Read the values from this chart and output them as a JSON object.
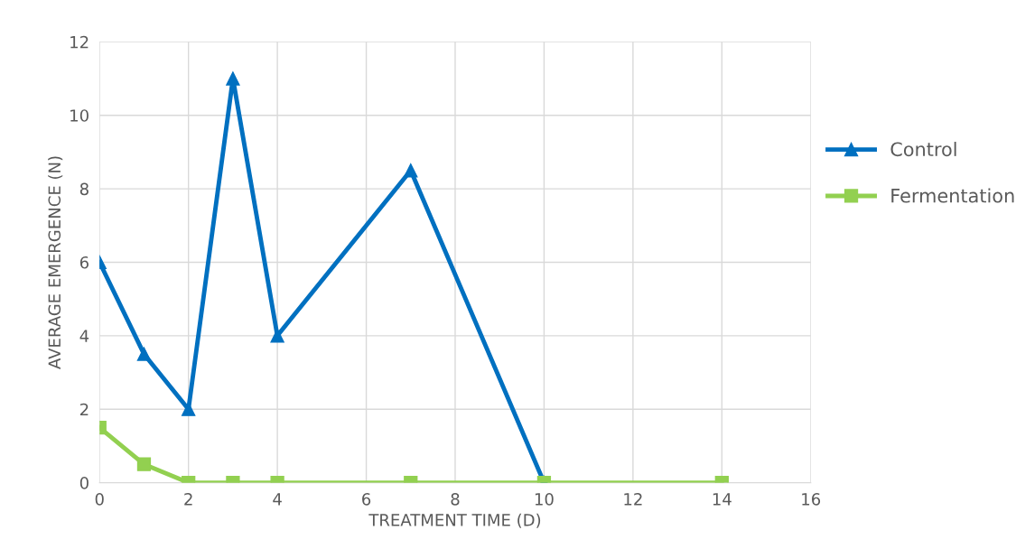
{
  "chart_data": {
    "type": "line",
    "xlabel": "TREATMENT TIME (D)",
    "ylabel": "AVERAGE EMERGENCE (N)",
    "series": [
      {
        "name": "Control",
        "color": "#0070c0",
        "marker": "triangle",
        "x": [
          0,
          1,
          2,
          3,
          4,
          7,
          10
        ],
        "values": [
          6,
          3.5,
          2,
          11,
          4,
          8.5,
          0
        ]
      },
      {
        "name": "Fermentation",
        "color": "#92d050",
        "marker": "square",
        "x": [
          0,
          1,
          2,
          3,
          4,
          7,
          10,
          14
        ],
        "values": [
          1.5,
          0.5,
          0,
          0,
          0,
          0,
          0,
          0
        ]
      }
    ],
    "xlim": [
      0,
      16
    ],
    "xticks": [
      0,
      2,
      4,
      6,
      8,
      10,
      12,
      14,
      16
    ],
    "ylim": [
      0,
      12
    ],
    "yticks": [
      0,
      2,
      4,
      6,
      8,
      10,
      12
    ],
    "grid": true,
    "legend": "right",
    "line_style": "solid"
  }
}
